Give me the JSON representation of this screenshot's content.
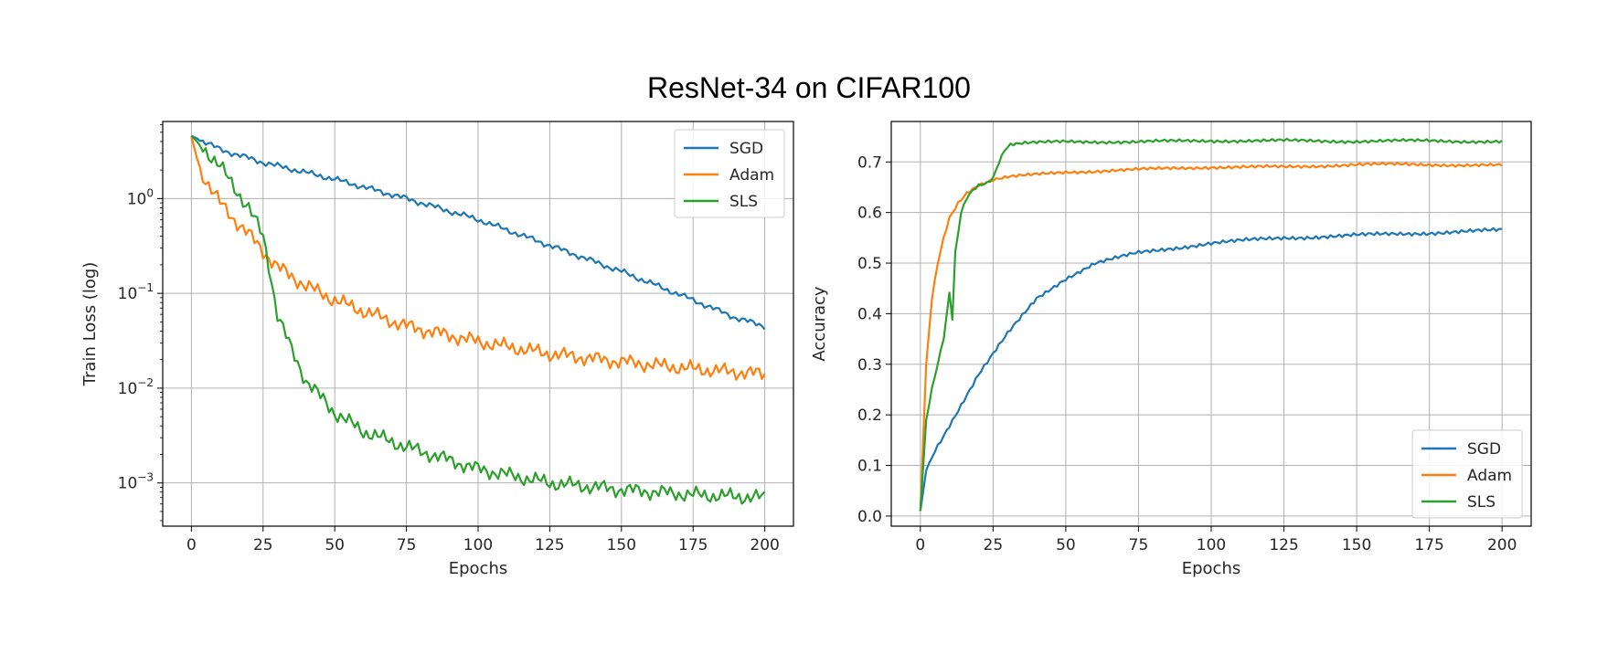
{
  "figure": {
    "suptitle": "ResNet-34 on CIFAR100"
  },
  "colors": {
    "SGD": "#1f77b4",
    "Adam": "#ff7f0e",
    "SLS": "#2ca02c",
    "grid": "#b0b0b0"
  },
  "chart_data": [
    {
      "type": "line",
      "xlabel": "Epochs",
      "ylabel": "Train Loss (log)",
      "yscale": "log",
      "xlim": [
        -10,
        210
      ],
      "ylim": [
        0.00035,
        6.5
      ],
      "xticks": [
        0,
        25,
        50,
        75,
        100,
        125,
        150,
        175,
        200
      ],
      "yticks": [
        {
          "value": 0.001,
          "base": "10",
          "exp": "−3"
        },
        {
          "value": 0.01,
          "base": "10",
          "exp": "−2"
        },
        {
          "value": 0.1,
          "base": "10",
          "exp": "−1"
        },
        {
          "value": 1,
          "base": "10",
          "exp": "0"
        }
      ],
      "grid": true,
      "legend": "upper right",
      "series": [
        {
          "name": "SGD",
          "x": [
            0,
            10,
            25,
            50,
            75,
            100,
            125,
            150,
            175,
            190,
            200
          ],
          "y": [
            4.6,
            3.3,
            2.4,
            1.6,
            1.0,
            0.6,
            0.32,
            0.17,
            0.085,
            0.055,
            0.045
          ]
        },
        {
          "name": "Adam",
          "x": [
            0,
            3,
            6,
            10,
            15,
            20,
            25,
            30,
            35,
            40,
            50,
            60,
            75,
            100,
            125,
            150,
            175,
            200
          ],
          "y": [
            4.5,
            2.0,
            1.4,
            0.9,
            0.6,
            0.42,
            0.28,
            0.19,
            0.15,
            0.12,
            0.085,
            0.065,
            0.045,
            0.031,
            0.023,
            0.019,
            0.016,
            0.014
          ]
        },
        {
          "name": "SLS",
          "x": [
            0,
            5,
            10,
            15,
            20,
            25,
            27,
            30,
            35,
            40,
            50,
            60,
            75,
            100,
            125,
            150,
            175,
            200
          ],
          "y": [
            4.6,
            3.2,
            2.2,
            1.3,
            0.8,
            0.4,
            0.2,
            0.06,
            0.025,
            0.012,
            0.0055,
            0.0035,
            0.0024,
            0.0014,
            0.001,
            0.00085,
            0.00075,
            0.0007
          ]
        }
      ]
    },
    {
      "type": "line",
      "xlabel": "Epochs",
      "ylabel": "Accuracy",
      "yscale": "linear",
      "xlim": [
        -10,
        210
      ],
      "ylim": [
        -0.02,
        0.78
      ],
      "xticks": [
        0,
        25,
        50,
        75,
        100,
        125,
        150,
        175,
        200
      ],
      "yticks": [
        0.0,
        0.1,
        0.2,
        0.3,
        0.4,
        0.5,
        0.6,
        0.7
      ],
      "grid": true,
      "legend": "lower right",
      "series": [
        {
          "name": "SGD",
          "x": [
            0,
            2,
            5,
            10,
            15,
            20,
            25,
            30,
            40,
            50,
            60,
            75,
            100,
            125,
            150,
            175,
            200
          ],
          "y": [
            0.01,
            0.09,
            0.13,
            0.18,
            0.23,
            0.28,
            0.32,
            0.36,
            0.43,
            0.47,
            0.5,
            0.52,
            0.54,
            0.55,
            0.555,
            0.56,
            0.565
          ]
        },
        {
          "name": "Adam",
          "x": [
            0,
            2,
            4,
            6,
            8,
            10,
            13,
            16,
            20,
            25,
            30,
            40,
            50,
            75,
            100,
            125,
            150,
            175,
            200
          ],
          "y": [
            0.01,
            0.3,
            0.43,
            0.5,
            0.55,
            0.59,
            0.62,
            0.64,
            0.655,
            0.665,
            0.67,
            0.675,
            0.68,
            0.685,
            0.69,
            0.69,
            0.695,
            0.695,
            0.693
          ]
        },
        {
          "name": "SLS",
          "x": [
            0,
            2,
            4,
            6,
            8,
            10,
            11,
            12,
            14,
            16,
            18,
            20,
            23,
            25,
            27,
            29,
            31,
            35,
            50,
            75,
            100,
            125,
            150,
            175,
            200
          ],
          "y": [
            0.01,
            0.19,
            0.25,
            0.3,
            0.35,
            0.44,
            0.39,
            0.52,
            0.6,
            0.63,
            0.645,
            0.655,
            0.66,
            0.67,
            0.7,
            0.725,
            0.735,
            0.737,
            0.74,
            0.74,
            0.742,
            0.742,
            0.741,
            0.742,
            0.74
          ]
        }
      ]
    }
  ]
}
